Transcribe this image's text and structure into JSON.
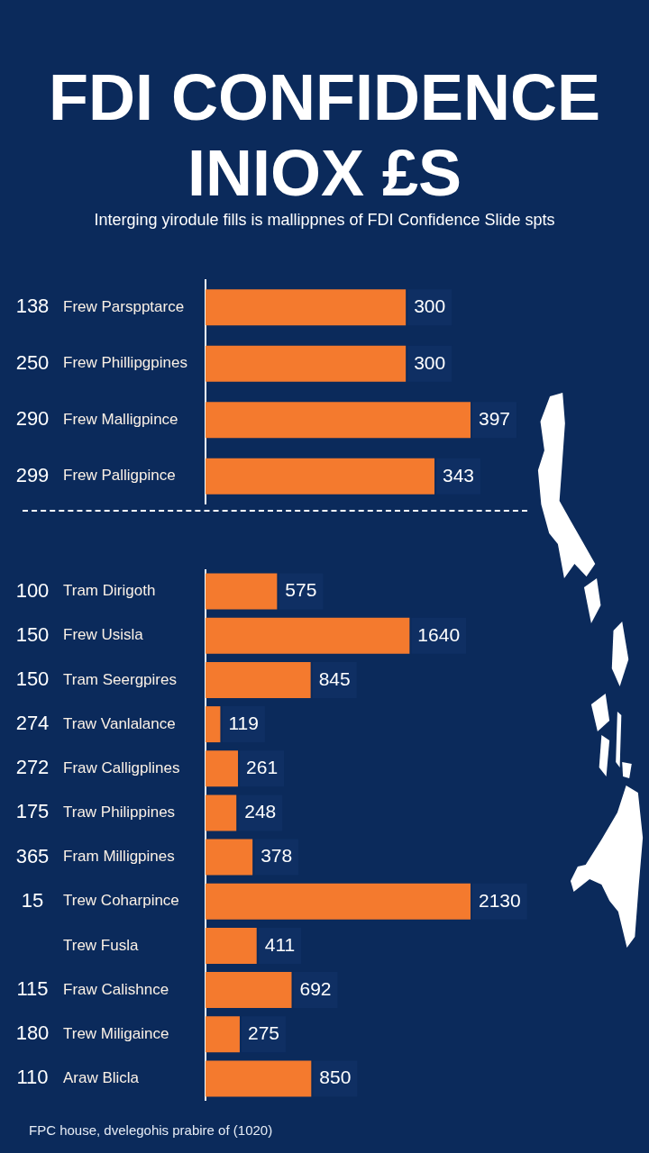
{
  "chart_data": [
    {
      "type": "bar",
      "orientation": "horizontal",
      "title": "FDI CONFIDENCE INIOX £S",
      "subtitle": "Interging yirodule fills is mallippnes of FDI Confidence Slide spts",
      "categories": [
        "138",
        "250",
        "290",
        "299"
      ],
      "values": [
        300,
        300,
        397,
        343
      ],
      "color": "#f47a2e",
      "data_labels": true,
      "annotations": [
        "Frew Parspptarce",
        "Frew Phillipgpines",
        "Frew Malligpince",
        "Frew Palligpince"
      ]
    },
    {
      "type": "bar",
      "orientation": "horizontal",
      "categories": [
        "100",
        "150",
        "150",
        "274",
        "272",
        "175",
        "365",
        "15",
        null,
        "115",
        "180",
        "110"
      ],
      "values": [
        575,
        1640,
        845,
        119,
        261,
        248,
        378,
        2130,
        411,
        692,
        275,
        850
      ],
      "color": "#f47a2e",
      "data_labels": true,
      "annotations": [
        "Tram Dirigoth",
        "Frew Usisla",
        "Tram Seergpires",
        "Traw Vanlalance",
        "Fraw Calligplines",
        "Traw Philippines",
        "Fram Milligpines",
        "Trew Coharpince",
        "Trew Fusla",
        "Fraw Calishnce",
        "Trew Miligaince",
        "Araw Blicla",
        "FPC house, dvelegohis prabire of (1020)"
      ]
    }
  ]
}
